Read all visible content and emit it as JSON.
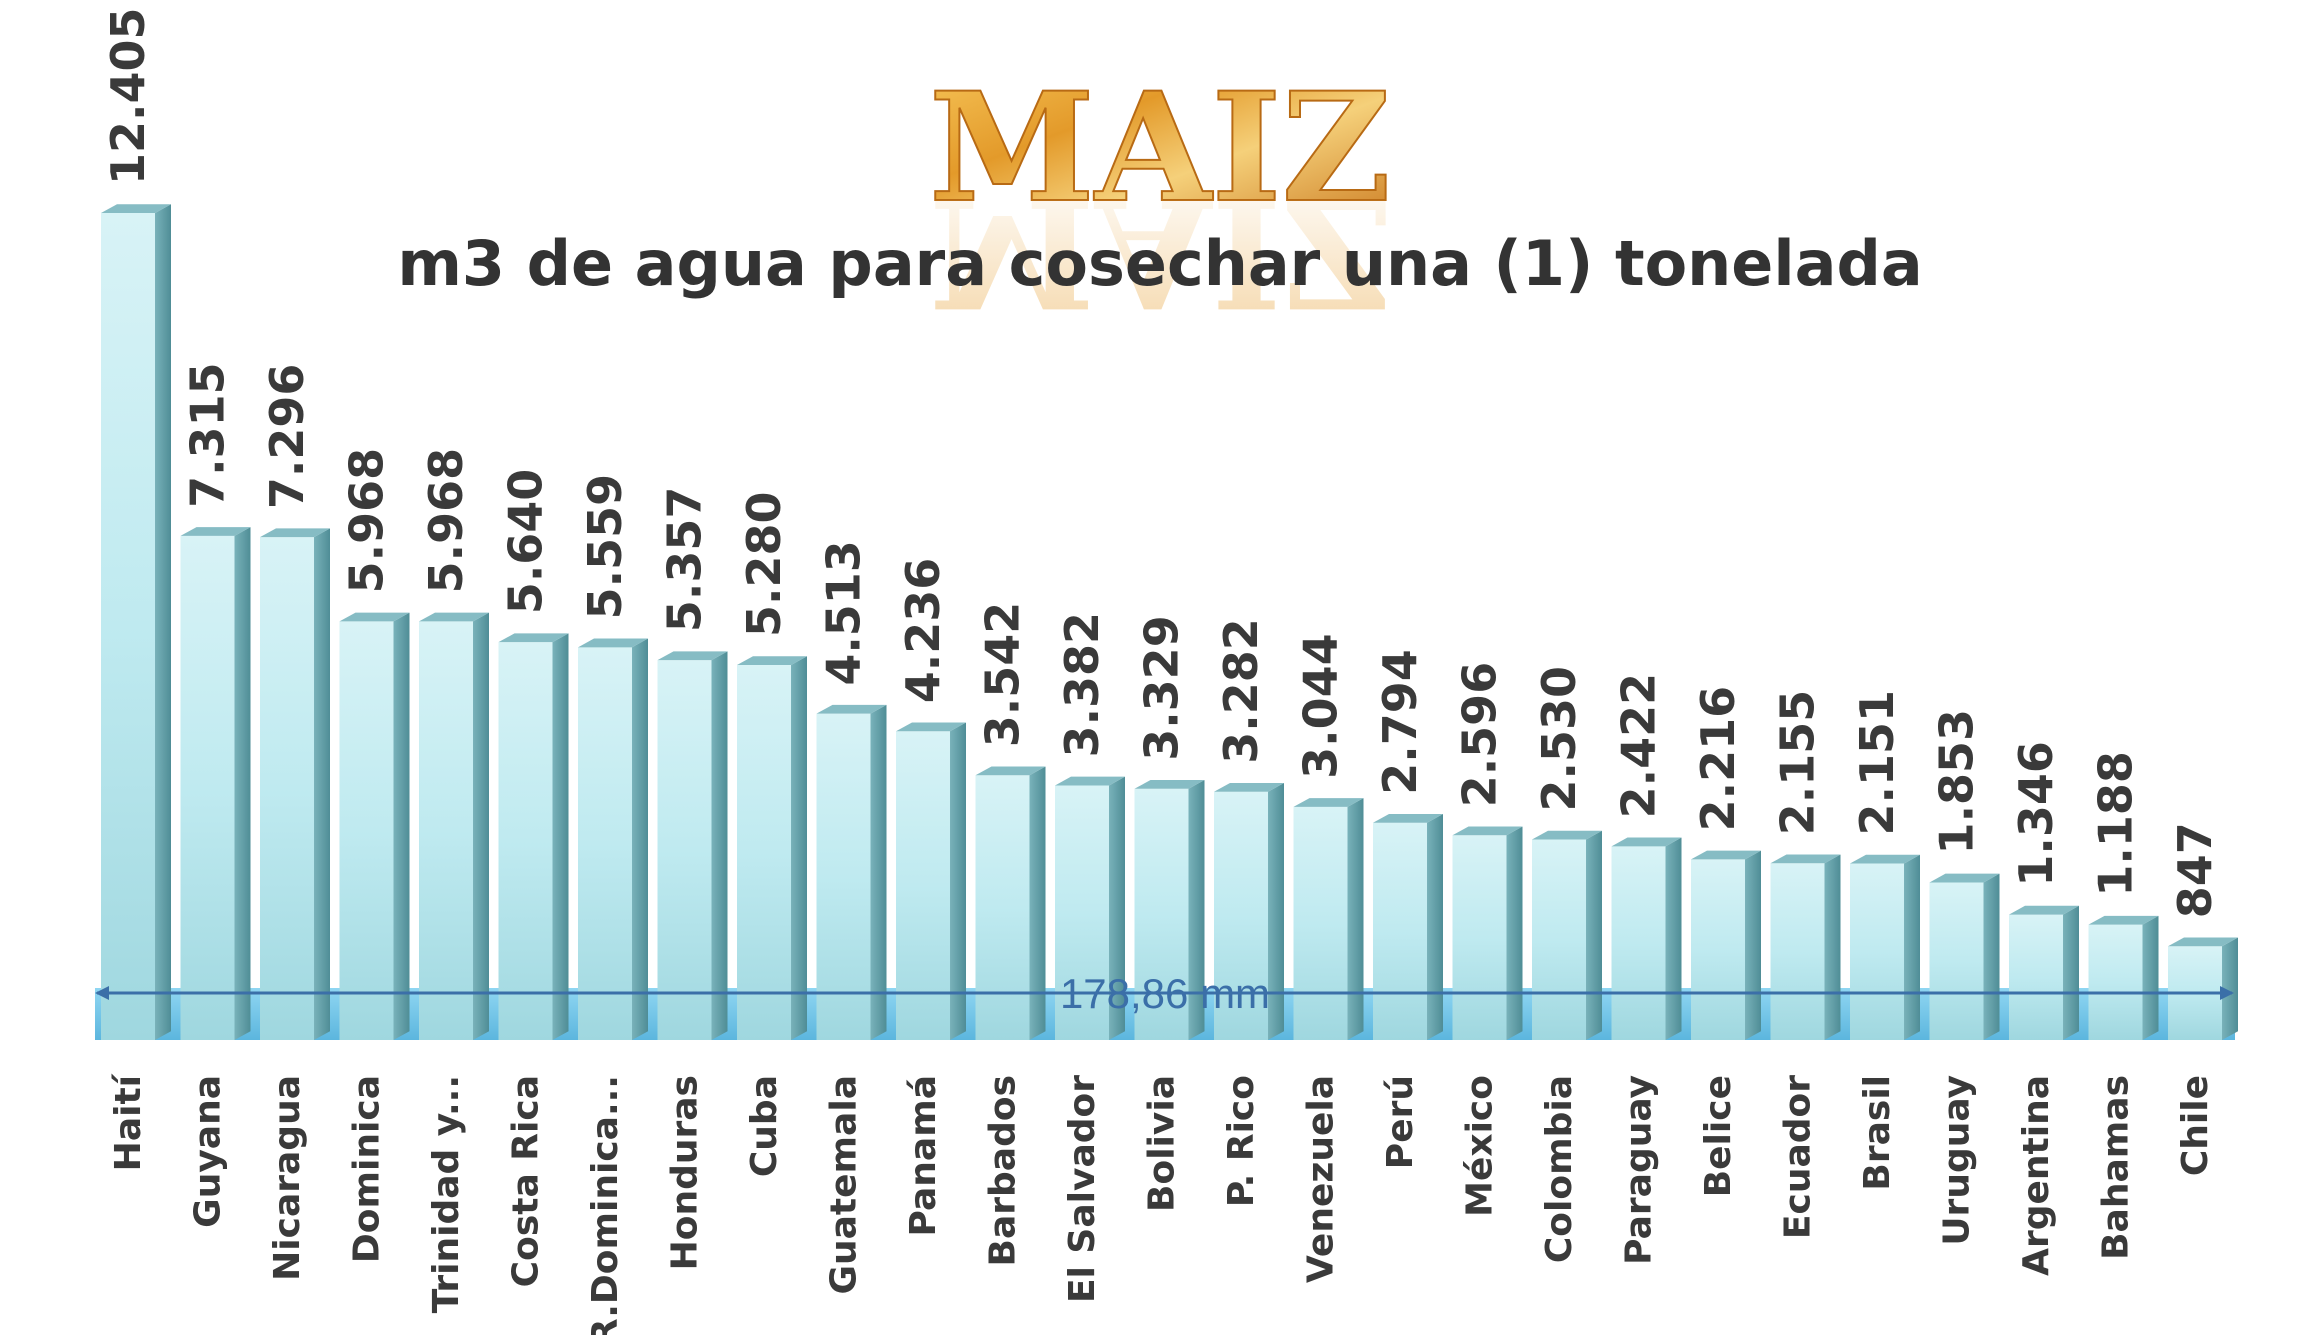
{
  "chart_data": {
    "type": "bar",
    "heading": "MAIZ",
    "title": "m3 de agua para cosechar una (1) tonelada",
    "categories": [
      "Haití",
      "Guyana",
      "Nicaragua",
      "Dominica",
      "Trinidad y...",
      "Costa Rica",
      "R.Dominica...",
      "Honduras",
      "Cuba",
      "Guatemala",
      "Panamá",
      "Barbados",
      "El Salvador",
      "Bolivia",
      "P. Rico",
      "Venezuela",
      "Perú",
      "México",
      "Colombia",
      "Paraguay",
      "Belice",
      "Ecuador",
      "Brasil",
      "Uruguay",
      "Argentina",
      "Bahamas",
      "Chile"
    ],
    "values": [
      12405,
      7315,
      7296,
      5968,
      5968,
      5640,
      5559,
      5357,
      5280,
      4513,
      4236,
      3542,
      3382,
      3329,
      3282,
      3044,
      2794,
      2596,
      2530,
      2422,
      2216,
      2155,
      2151,
      1853,
      1346,
      1188,
      847
    ],
    "value_labels": [
      "12.405",
      "7.315",
      "7.296",
      "5.968",
      "5.968",
      "5.640",
      "5.559",
      "5.357",
      "5.280",
      "4.513",
      "4.236",
      "3.542",
      "3.382",
      "3.329",
      "3.282",
      "3.044",
      "2.794",
      "2.596",
      "2.530",
      "2.422",
      "2.216",
      "2.155",
      "2.151",
      "1.853",
      "1.346",
      "1.188",
      "847"
    ],
    "ylim": [
      0,
      12405
    ],
    "grid": false,
    "legend": "none",
    "colors": {
      "bar_front": "#bfeaf0",
      "bar_side": "#6fa8b0",
      "bar_top": "#86bcc4",
      "floor": "#59bde6",
      "heading": "#e0a030",
      "measure": "#3b6fa8"
    },
    "measure_label": "178,86 mm"
  }
}
